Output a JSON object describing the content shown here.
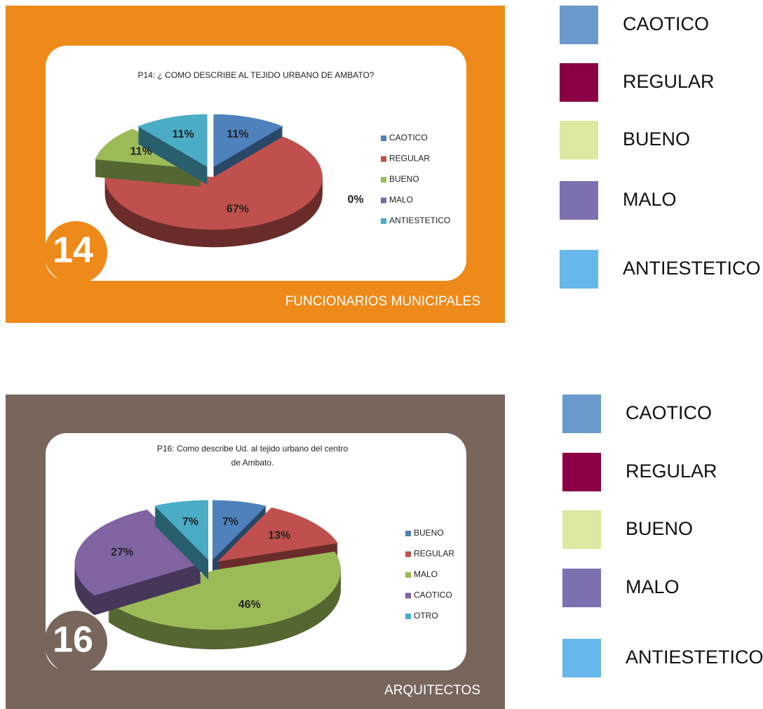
{
  "chart_data": [
    {
      "type": "pie",
      "title": "P14: ¿ COMO DESCRIBE AL TEJIDO URBANO DE AMBATO?",
      "categories": [
        "CAOTICO",
        "REGULAR",
        "BUENO",
        "MALO",
        "ANTIESTETICO"
      ],
      "values": [
        11,
        67,
        11,
        0,
        11
      ],
      "value_labels": [
        "11%",
        "67%",
        "11%",
        "0%",
        "11%"
      ],
      "colors": [
        "#4f81bd",
        "#c0504d",
        "#9bbb59",
        "#8064a2",
        "#4bacc6"
      ]
    },
    {
      "type": "pie",
      "title": "P16: Como describe Ud. al tejido urbano del centro de Ambato.",
      "categories": [
        "BUENO",
        "REGULAR",
        "MALO",
        "CAOTICO",
        "OTRO"
      ],
      "values": [
        7,
        13,
        46,
        27,
        7
      ],
      "value_labels": [
        "7%",
        "13%",
        "46%",
        "27%",
        "7%"
      ],
      "colors": [
        "#4f81bd",
        "#c0504d",
        "#9bbb59",
        "#8064a2",
        "#4bacc6"
      ]
    }
  ],
  "panels": [
    {
      "number": "14",
      "caption": "FUNCIONARIOS MUNICIPALES",
      "background": "#ee8a1a"
    },
    {
      "number": "16",
      "caption": "ARQUITECTOS",
      "background": "#78665c"
    }
  ],
  "legends": [
    {
      "items": [
        {
          "name": "CAOTICO",
          "color": "#6a9acb"
        },
        {
          "name": "REGULAR",
          "color": "#8a0045"
        },
        {
          "name": "BUENO",
          "color": "#dde8a0"
        },
        {
          "name": "MALO",
          "color": "#7e70b0"
        },
        {
          "name": "ANTIESTETICO",
          "color": "#66b8ec"
        }
      ]
    },
    {
      "items": [
        {
          "name": "CAOTICO",
          "color": "#6a9acb"
        },
        {
          "name": "REGULAR",
          "color": "#8a0045"
        },
        {
          "name": "BUENO",
          "color": "#dde8a0"
        },
        {
          "name": "MALO",
          "color": "#7e70b0"
        },
        {
          "name": "ANTIESTETICO",
          "color": "#66b8ec"
        }
      ]
    }
  ]
}
